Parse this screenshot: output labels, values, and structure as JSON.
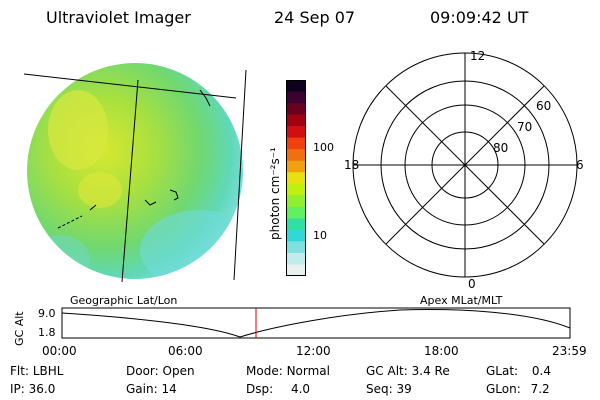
{
  "header": {
    "instrument": "Ultraviolet Imager",
    "date": "24 Sep 07",
    "time": "09:09:42 UT"
  },
  "colorbar": {
    "unit_label": "photon cm⁻²s⁻¹",
    "tick_labels": [
      "100",
      "10"
    ],
    "colors": [
      "#100020",
      "#3a0030",
      "#6a0020",
      "#a00010",
      "#d01010",
      "#f04010",
      "#f07010",
      "#f0a010",
      "#e8e010",
      "#c0f010",
      "#90f030",
      "#60f060",
      "#30e0a0",
      "#30d8d8",
      "#80e0e0",
      "#c0ecec",
      "#e8f0f0"
    ]
  },
  "polar_plot": {
    "mlt_labels": {
      "top": "12",
      "left": "18",
      "right": "6",
      "bottom": "0"
    },
    "lat_labels": [
      "60",
      "70",
      "80"
    ]
  },
  "timeline": {
    "y_axis_label": "GC Alt",
    "y_ticks": [
      "9.0",
      "1.8"
    ],
    "left_caption": "Geographic Lat/Lon",
    "right_caption": "Apex MLat/MLT",
    "x_ticks": [
      "00:00",
      "06:00",
      "12:00",
      "18:00",
      "23:59"
    ],
    "current_marker_color": "#cc0000"
  },
  "info": {
    "row1": [
      {
        "key": "Flt:",
        "val": "LBHL"
      },
      {
        "key": "Door:",
        "val": "Open"
      },
      {
        "key": "Mode:",
        "val": "Normal"
      },
      {
        "key": "GC Alt:",
        "val": "3.4 Re"
      },
      {
        "key": "GLat:",
        "val": "0.4"
      }
    ],
    "row2": [
      {
        "key": "IP:",
        "val": "36.0"
      },
      {
        "key": "Gain:",
        "val": "14"
      },
      {
        "key": "Dsp:",
        "val": "4.0"
      },
      {
        "key": "Seq:",
        "val": "39"
      },
      {
        "key": "GLon:",
        "val": "7.2"
      }
    ]
  }
}
